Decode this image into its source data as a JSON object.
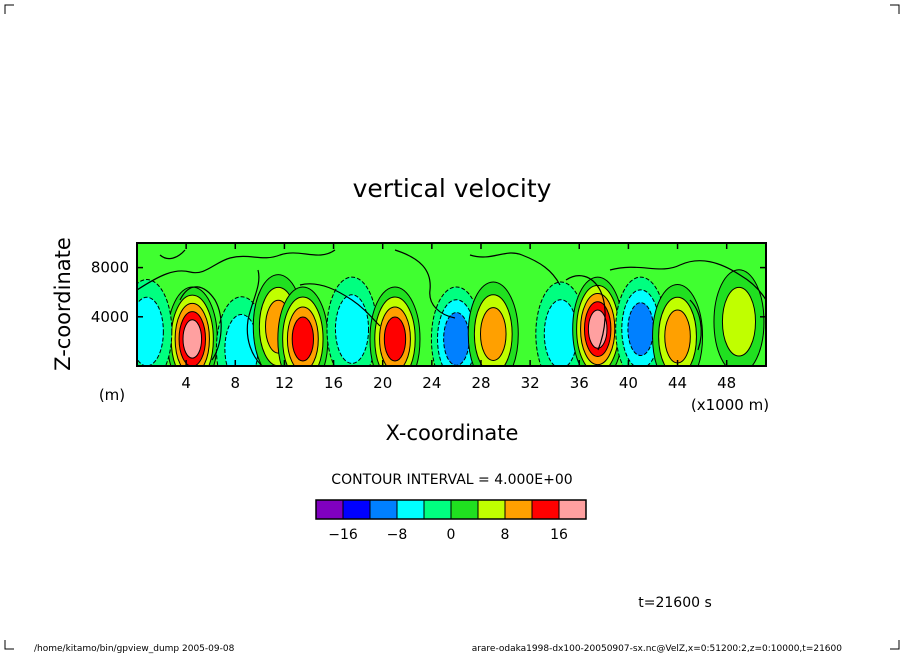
{
  "chart_data": {
    "type": "contour",
    "title": "vertical velocity",
    "xlabel": "X-coordinate",
    "ylabel": "Z-coordinate",
    "x_unit": "(x1000 m)",
    "y_unit": "(m)",
    "xlim": [
      0,
      51.2
    ],
    "ylim": [
      0,
      10000
    ],
    "x_ticks": [
      4,
      8,
      12,
      16,
      20,
      24,
      28,
      32,
      36,
      40,
      44,
      48
    ],
    "x_tick_labels": [
      "4",
      "8",
      "12",
      "16",
      "20",
      "24",
      "28",
      "32",
      "36",
      "40",
      "44",
      "48"
    ],
    "y_ticks": [
      4000,
      8000
    ],
    "y_tick_labels": [
      "4000",
      "8000"
    ],
    "contour_interval_text": "CONTOUR INTERVAL = 4.000E+00",
    "contour_interval": 4,
    "colorbar": {
      "levels": [
        -20,
        -16,
        -12,
        -8,
        -4,
        0,
        4,
        8,
        12,
        16,
        20
      ],
      "colors": [
        "#8000c0",
        "#0000ff",
        "#0080ff",
        "#00ffff",
        "#00ff80",
        "#20e020",
        "#c0ff00",
        "#ffa000",
        "#ff0000",
        "#ffa0a0"
      ],
      "tick_values": [
        -16,
        -8,
        0,
        8,
        16
      ],
      "tick_labels": [
        "−16",
        "−8",
        "0",
        "8",
        "16"
      ]
    },
    "features": [
      {
        "x": 4.5,
        "z": 2200,
        "value": 18
      },
      {
        "x": 8.5,
        "z": 1400,
        "value": -6
      },
      {
        "x": 11.5,
        "z": 3200,
        "value": 10
      },
      {
        "x": 13.5,
        "z": 2200,
        "value": 16
      },
      {
        "x": 17.5,
        "z": 3000,
        "value": -8
      },
      {
        "x": 21,
        "z": 2200,
        "value": 14
      },
      {
        "x": 26,
        "z": 2200,
        "value": -10
      },
      {
        "x": 29,
        "z": 2600,
        "value": 12
      },
      {
        "x": 34.5,
        "z": 2600,
        "value": -6
      },
      {
        "x": 37.5,
        "z": 3000,
        "value": 20
      },
      {
        "x": 41,
        "z": 3000,
        "value": -10
      },
      {
        "x": 44,
        "z": 2400,
        "value": 10
      },
      {
        "x": 49,
        "z": 3600,
        "value": 6
      },
      {
        "x": 0.8,
        "z": 2800,
        "value": -7
      }
    ]
  },
  "time_label": "t=21600 s",
  "footer": {
    "left": "/home/kitamo/bin/gpview_dump  2005-09-08",
    "right": "arare-odaka1998-dx100-20050907-sx.nc@VelZ,x=0:51200:2,z=0:10000,t=21600"
  },
  "colors": {
    "background": "#ffffff",
    "ink": "#000000",
    "field_base": "#40ff30"
  }
}
